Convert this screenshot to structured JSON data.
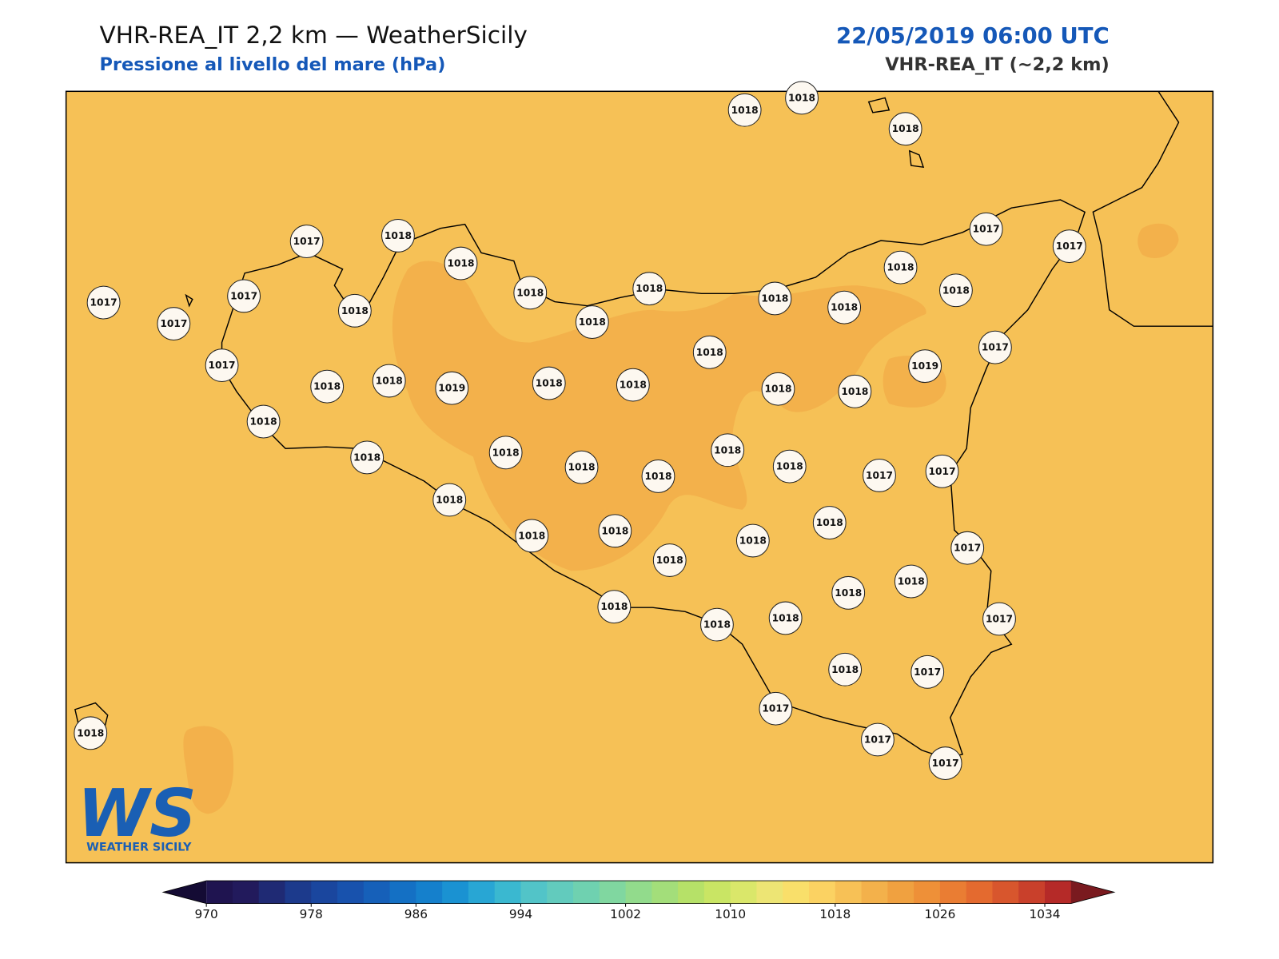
{
  "header": {
    "title": "VHR-REA_IT 2,2 km — WeatherSicily",
    "subtitle": "Pressione al livello del mare (hPa)",
    "datetime": "22/05/2019 06:00 UTC",
    "model": "VHR-REA_IT (~2,2 km)"
  },
  "map": {
    "field_color": "#f6c156",
    "high_color": "#f3b14b",
    "stations": [
      1018,
      1018,
      1018,
      1017,
      1017,
      1017,
      1018,
      1018,
      1018,
      1018,
      1018,
      1018,
      1017,
      1017,
      1018,
      1018,
      1018,
      1018,
      1017,
      1018,
      1017,
      1017,
      1018,
      1018,
      1019,
      1018,
      1018,
      1018,
      1018,
      1019,
      1018,
      1018,
      1018,
      1018,
      1018,
      1018,
      1018,
      1017,
      1017,
      1018,
      1018,
      1018,
      1018,
      1018,
      1018,
      1017,
      1018,
      1018,
      1018,
      1018,
      1018,
      1017,
      1018,
      1017,
      1017,
      1017,
      1017,
      1018
    ]
  },
  "logo": {
    "text": "WS",
    "caption": "WEATHER SICILY"
  },
  "colorbar": {
    "xlim": [
      970,
      1036
    ],
    "xticks": [
      970,
      978,
      986,
      994,
      1002,
      1010,
      1018,
      1026,
      1034
    ],
    "colors": [
      "#1f1450",
      "#221a5c",
      "#1f2a74",
      "#1c3a8c",
      "#1a469e",
      "#1852ad",
      "#1660b9",
      "#1470c4",
      "#1580cc",
      "#1a92d2",
      "#28a6d4",
      "#3ab8d0",
      "#52c4c8",
      "#62cbbd",
      "#6fd1b0",
      "#80d7a0",
      "#92db8c",
      "#a3de7a",
      "#b6e168",
      "#c9e564",
      "#dae76a",
      "#ede574",
      "#f9df6a",
      "#fbd262",
      "#f7c156",
      "#f3b14b",
      "#f0a140",
      "#ee9038",
      "#ea7d33",
      "#e46a2f",
      "#d8562d",
      "#c9402b",
      "#b52a28"
    ],
    "extend_colors": [
      "#140b34",
      "#7a1a1f"
    ]
  }
}
